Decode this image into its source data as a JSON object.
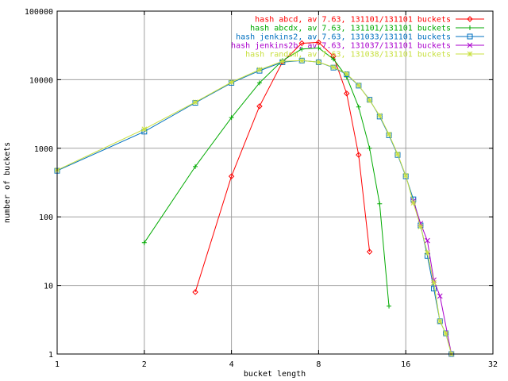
{
  "chart_data": {
    "type": "line",
    "xlabel": "bucket length",
    "ylabel": "number of buckets",
    "x_scale": "log2",
    "y_scale": "log10",
    "xlim": [
      1,
      32
    ],
    "ylim": [
      1,
      100000
    ],
    "x_ticks": [
      {
        "value": 1,
        "label": "1"
      },
      {
        "value": 2,
        "label": "2"
      },
      {
        "value": 4,
        "label": "4"
      },
      {
        "value": 8,
        "label": "8"
      },
      {
        "value": 16,
        "label": "16"
      },
      {
        "value": 32,
        "label": "32"
      }
    ],
    "y_ticks": [
      {
        "value": 1,
        "label": "1"
      },
      {
        "value": 10,
        "label": "10"
      },
      {
        "value": 100,
        "label": "100"
      },
      {
        "value": 1000,
        "label": "1000"
      },
      {
        "value": 10000,
        "label": "10000"
      },
      {
        "value": 100000,
        "label": "100000"
      }
    ],
    "grid": true,
    "legend_position": "top-right",
    "series": [
      {
        "name": "hash abcd, av 7.63, 131101/131101 buckets",
        "color": "#ff0000",
        "marker": "diamond",
        "points": [
          [
            3,
            8
          ],
          [
            4,
            390
          ],
          [
            5,
            4100
          ],
          [
            6,
            18000
          ],
          [
            7,
            34000
          ],
          [
            8,
            35000
          ],
          [
            9,
            22000
          ],
          [
            10,
            6300
          ],
          [
            11,
            800
          ],
          [
            12,
            31
          ]
        ]
      },
      {
        "name": "hash abcdx, av 7.63, 131101/131101 buckets",
        "color": "#00aa00",
        "marker": "plus",
        "points": [
          [
            2,
            42
          ],
          [
            3,
            540
          ],
          [
            4,
            2800
          ],
          [
            5,
            9000
          ],
          [
            6,
            19000
          ],
          [
            7,
            28000
          ],
          [
            8,
            29000
          ],
          [
            9,
            20000
          ],
          [
            10,
            11000
          ],
          [
            11,
            4000
          ],
          [
            12,
            1000
          ],
          [
            13,
            155
          ],
          [
            14,
            5
          ]
        ]
      },
      {
        "name": "hash jenkins2, av 7.63, 131033/131101 buckets",
        "color": "#0070c0",
        "marker": "square",
        "points": [
          [
            1,
            470
          ],
          [
            2,
            1750
          ],
          [
            3,
            4600
          ],
          [
            4,
            9000
          ],
          [
            5,
            13500
          ],
          [
            6,
            18000
          ],
          [
            7,
            19000
          ],
          [
            8,
            18000
          ],
          [
            9,
            15000
          ],
          [
            10,
            12000
          ],
          [
            11,
            8200
          ],
          [
            12,
            5100
          ],
          [
            13,
            2900
          ],
          [
            14,
            1550
          ],
          [
            15,
            800
          ],
          [
            16,
            390
          ],
          [
            17,
            180
          ],
          [
            18,
            75
          ],
          [
            19,
            27
          ],
          [
            20,
            9
          ],
          [
            21,
            3
          ],
          [
            22,
            2
          ],
          [
            23,
            1
          ]
        ]
      },
      {
        "name": "hash jenkins2b, av 7.63, 131037/131101 buckets",
        "color": "#aa00cc",
        "marker": "cross",
        "points": [
          [
            17,
            170
          ],
          [
            18,
            80
          ],
          [
            19,
            45
          ],
          [
            20,
            12
          ],
          [
            21,
            7
          ],
          [
            23,
            1
          ]
        ]
      },
      {
        "name": "hash random, av 7.63, 131038/131101 buckets",
        "color": "#c8e040",
        "marker": "star",
        "points": [
          [
            1,
            480
          ],
          [
            2,
            1900
          ],
          [
            3,
            4700
          ],
          [
            4,
            9200
          ],
          [
            5,
            14000
          ],
          [
            6,
            18500
          ],
          [
            7,
            19000
          ],
          [
            8,
            18000
          ],
          [
            9,
            15200
          ],
          [
            10,
            12200
          ],
          [
            11,
            8300
          ],
          [
            12,
            5000
          ],
          [
            13,
            3000
          ],
          [
            14,
            1600
          ],
          [
            15,
            820
          ],
          [
            16,
            400
          ],
          [
            17,
            160
          ],
          [
            18,
            72
          ],
          [
            19,
            30
          ],
          [
            20,
            11
          ],
          [
            21,
            3
          ],
          [
            22,
            2
          ],
          [
            23,
            1
          ]
        ]
      }
    ]
  }
}
